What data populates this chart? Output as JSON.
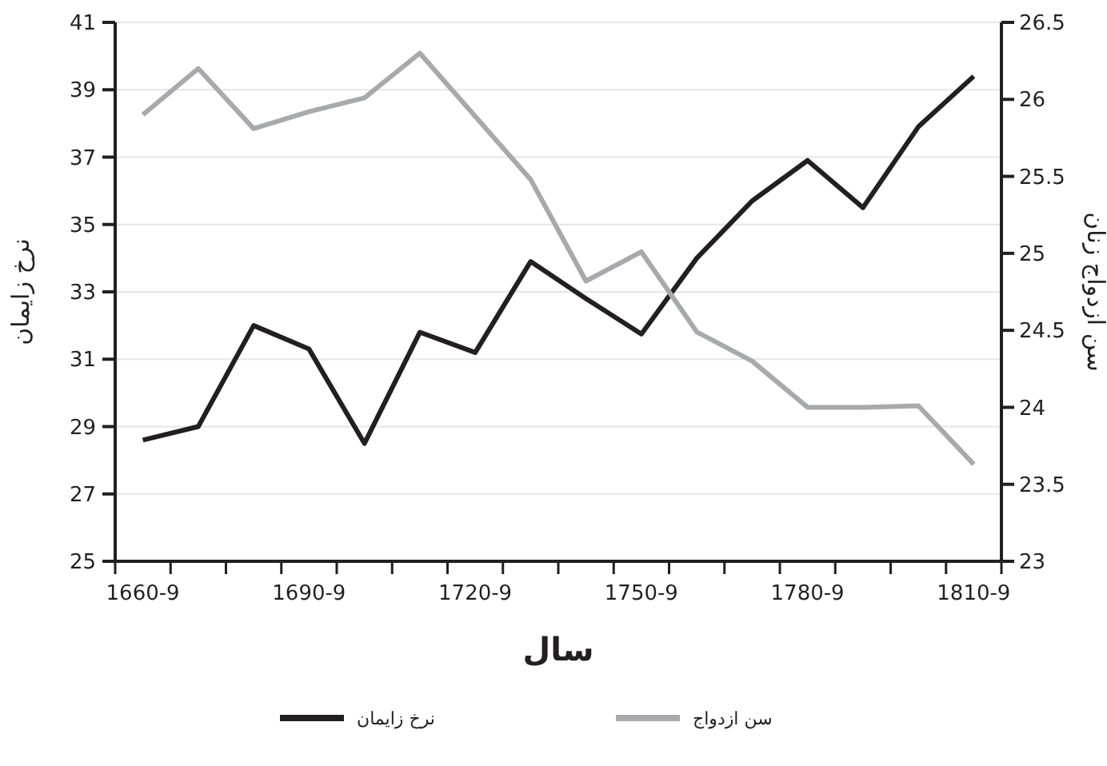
{
  "chart_data": {
    "type": "line",
    "xlabel": "سال",
    "ylabel": "نرخ زایمان",
    "y2label": "سن ازدواج زنان",
    "categories": [
      "1660-9",
      null,
      null,
      "1690-9",
      null,
      null,
      "1720-9",
      null,
      null,
      "1750-9",
      null,
      null,
      "1780-9",
      null,
      null,
      "1810-9"
    ],
    "series": [
      {
        "name": "نرخ زایمان",
        "color": "#231f20",
        "values": [
          28.6,
          29.0,
          32.0,
          31.3,
          28.5,
          31.8,
          31.2,
          33.9,
          32.8,
          31.75,
          34.0,
          35.7,
          36.9,
          35.5,
          37.9,
          39.4
        ]
      },
      {
        "name": "سن ازدواج",
        "color": "#a7a9ac",
        "axis": "y2",
        "values": [
          25.9,
          26.2,
          25.81,
          25.92,
          26.01,
          26.3,
          25.89,
          25.48,
          24.82,
          25.01,
          24.49,
          24.3,
          24.0,
          24.0,
          24.01,
          23.63
        ]
      }
    ],
    "ylim": [
      25,
      41
    ],
    "yticks": [
      25,
      27,
      29,
      31,
      33,
      35,
      37,
      39,
      41
    ],
    "y2lim": [
      23,
      26.5
    ],
    "y2ticks": [
      23,
      23.5,
      24,
      24.5,
      25,
      25.5,
      26,
      26.5
    ],
    "grid": "y",
    "legend": "bottom",
    "marker": "none",
    "line_style": "solid"
  }
}
